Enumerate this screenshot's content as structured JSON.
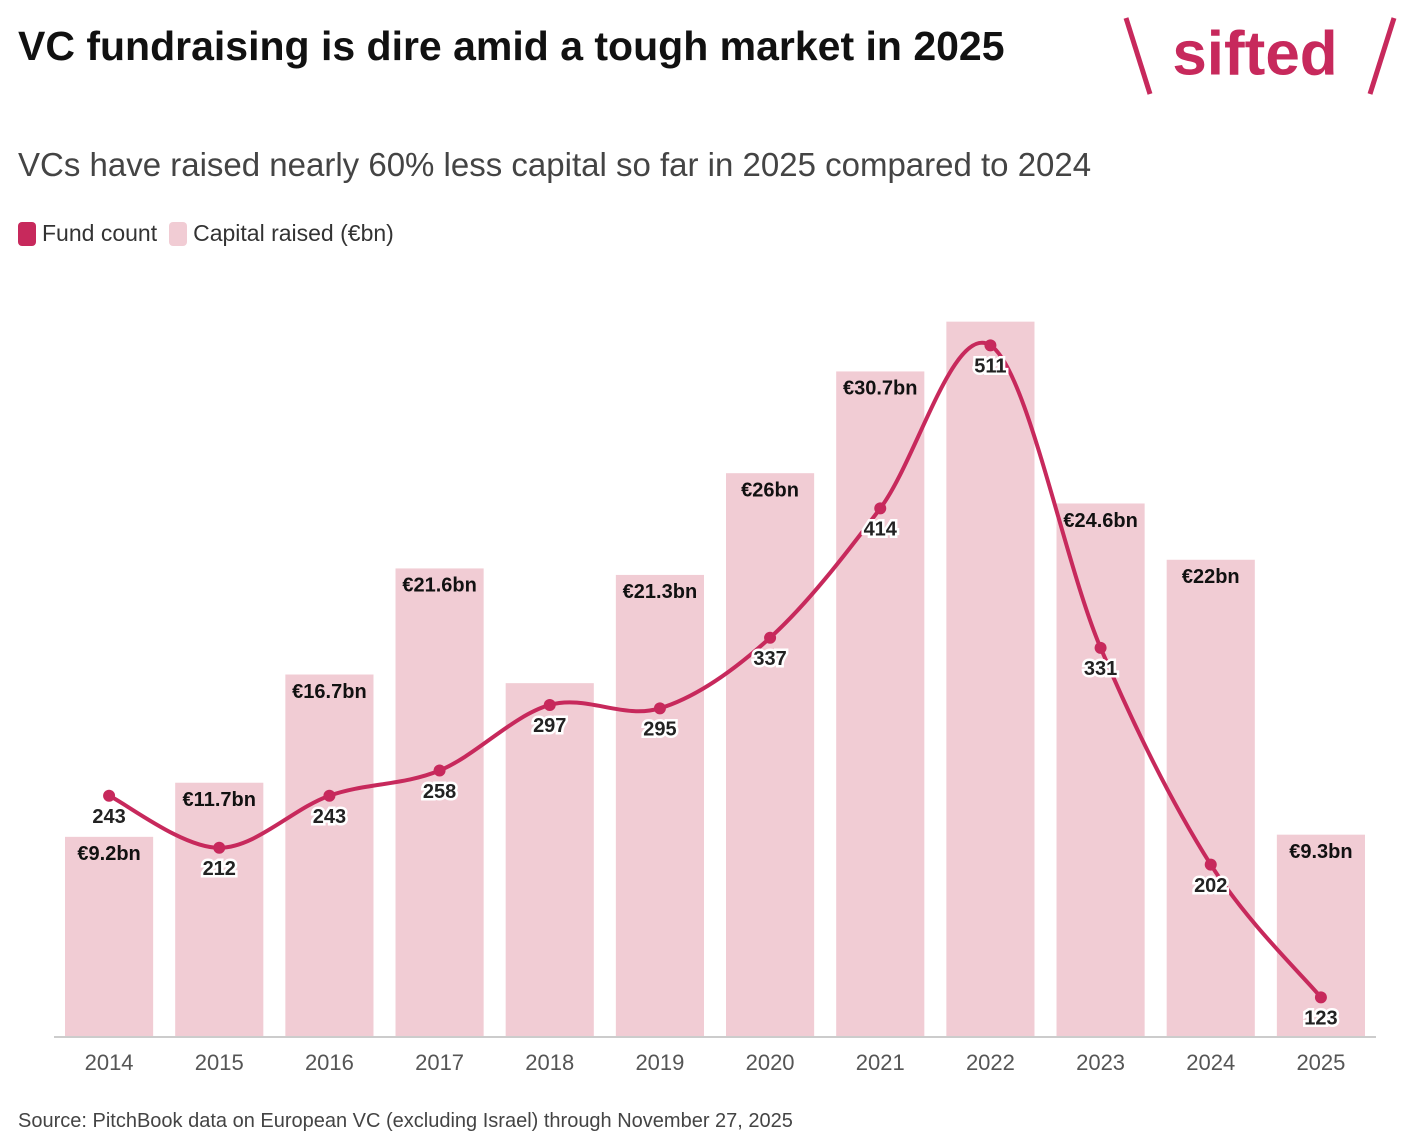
{
  "chart_data": {
    "type": "bar-line",
    "title": "VC fundraising is dire amid a tough market in 2025",
    "subtitle": "VCs have raised nearly 60% less capital so far in 2025 compared to 2024",
    "source": "Source: PitchBook data on European VC (excluding Israel) through November 27, 2025",
    "logo": "sifted",
    "categories": [
      "2014",
      "2015",
      "2016",
      "2017",
      "2018",
      "2019",
      "2020",
      "2021",
      "2022",
      "2023",
      "2024",
      "2025"
    ],
    "ylim": [
      0,
      34
    ],
    "y2lim": [
      100,
      538
    ],
    "series": [
      {
        "name": "Fund count",
        "color": "#c7295c",
        "axis": "y2",
        "values": [
          243,
          212,
          243,
          258,
          297,
          295,
          337,
          414,
          511,
          331,
          202,
          123
        ]
      },
      {
        "name": "Capital raised (€bn)",
        "color": "#f1ccd4",
        "values": [
          9.2,
          11.7,
          16.7,
          21.6,
          16.3,
          21.3,
          26,
          30.7,
          33,
          24.6,
          22,
          9.3
        ],
        "value_labels": [
          "€9.2bn",
          "€11.7bn",
          "€16.7bn",
          "€21.6bn",
          null,
          "€21.3bn",
          "€26bn",
          "€30.7bn",
          null,
          "€24.6bn",
          "€22bn",
          "€9.3bn"
        ]
      }
    ]
  }
}
